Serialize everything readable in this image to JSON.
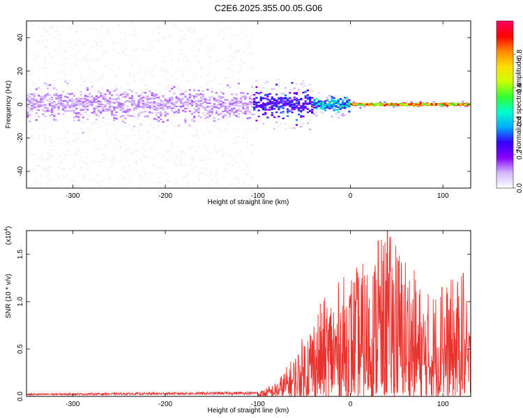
{
  "title": "C2E6.2025.355.00.05.G06",
  "colors": {
    "snr_line": "#e8322e",
    "colorbar_stops": [
      "#ffffff",
      "#d4b8ff",
      "#8800ff",
      "#3300ff",
      "#00aaff",
      "#00ffcc",
      "#33ff33",
      "#c8ff00",
      "#ffdd00",
      "#ff8800",
      "#ff0000",
      "#ff0066"
    ]
  },
  "chart_data": [
    {
      "id": "spectrogram",
      "type": "heatmap",
      "xlabel": "Height of straight line (km)",
      "ylabel": "Frequency (Hz)",
      "xlim": [
        -350,
        130
      ],
      "ylim": [
        -50,
        50
      ],
      "xticks": [
        -300,
        -200,
        -100,
        0,
        100
      ],
      "xtick_labels": [
        "-300",
        "-200",
        "-100",
        "0",
        "100"
      ],
      "yticks": [
        -40,
        -20,
        0,
        20,
        40
      ],
      "ytick_labels": [
        "-40",
        "-20",
        "0",
        "20",
        "40"
      ],
      "colorbar": {
        "label": "Normalized spectral amplitude",
        "range": [
          0,
          1
        ],
        "ticks": [
          0.0,
          0.2,
          0.4,
          0.6,
          0.8
        ],
        "tick_labels": [
          "0.0",
          "0.2",
          "0.4",
          "0.6",
          "0.8"
        ]
      },
      "regions": [
        {
          "x_start": -350,
          "x_end": -105,
          "noise_band_hz": 50,
          "core_band_hz": 7,
          "core_amplitude": 0.12,
          "noise_amplitude": 0.03
        },
        {
          "x_start": -105,
          "x_end": -40,
          "noise_band_hz": 15,
          "core_band_hz": 6,
          "core_amplitude": 0.3,
          "noise_amplitude": 0.1
        },
        {
          "x_start": -40,
          "x_end": 0,
          "noise_band_hz": 8,
          "core_band_hz": 3,
          "core_amplitude": 0.45,
          "noise_amplitude": 0.12
        },
        {
          "x_start": 0,
          "x_end": 130,
          "noise_band_hz": 2,
          "core_band_hz": 0.5,
          "core_amplitude": 0.9,
          "noise_amplitude": 0.2
        }
      ]
    },
    {
      "id": "snr",
      "type": "line",
      "xlabel": "Height of straight line (km)",
      "ylabel": "SNR (10 * v/v)",
      "y_multiplier": "(x10",
      "y_multiplier_exp": "4",
      "xlim": [
        -350,
        130
      ],
      "ylim": [
        0,
        1.75
      ],
      "xticks": [
        -300,
        -200,
        -100,
        0,
        100
      ],
      "xtick_labels": [
        "-300",
        "-200",
        "-100",
        "0",
        "100"
      ],
      "yticks": [
        0.0,
        0.5,
        1.0,
        1.5
      ],
      "ytick_labels": [
        "0.0",
        "0.5",
        "1.0",
        "1.5"
      ],
      "envelope": {
        "x": [
          -350,
          -100,
          -80,
          -60,
          -40,
          -20,
          0,
          20,
          40,
          60,
          80,
          100,
          120,
          125,
          130
        ],
        "y": [
          0.03,
          0.05,
          0.15,
          0.45,
          0.9,
          1.15,
          1.35,
          1.45,
          1.75,
          1.55,
          1.1,
          1.2,
          1.3,
          1.05,
          0.75
        ]
      },
      "peaks": [
        {
          "x": 40,
          "y": 1.75
        },
        {
          "x": 49,
          "y": 1.59
        },
        {
          "x": 30,
          "y": 1.64
        },
        {
          "x": 99,
          "y": 1.15
        },
        {
          "x": 122,
          "y": 1.3
        }
      ]
    }
  ]
}
